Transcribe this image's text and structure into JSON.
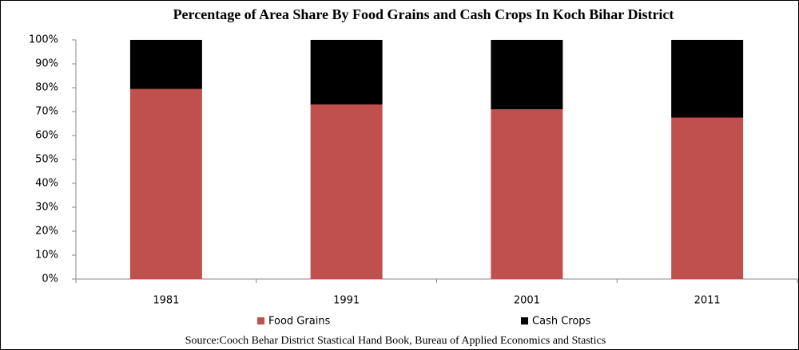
{
  "chart_data": {
    "type": "bar",
    "stacked": true,
    "title": "Percentage of Area Share By Food Grains and Cash Crops In Koch Bihar District",
    "categories": [
      "1981",
      "1991",
      "2001",
      "2011"
    ],
    "series": [
      {
        "name": "Food Grains",
        "color": "#c0504d",
        "values": [
          79.5,
          73,
          71,
          67.5
        ]
      },
      {
        "name": "Cash Crops",
        "color": "#000000",
        "values": [
          20.5,
          27,
          29,
          32.5
        ]
      }
    ],
    "ylim": [
      0,
      100
    ],
    "yticks": [
      {
        "value": 0,
        "label": "0%"
      },
      {
        "value": 10,
        "label": "10%"
      },
      {
        "value": 20,
        "label": "20%"
      },
      {
        "value": 30,
        "label": "30%"
      },
      {
        "value": 40,
        "label": "40%"
      },
      {
        "value": 50,
        "label": "50%"
      },
      {
        "value": 60,
        "label": "60%"
      },
      {
        "value": 70,
        "label": "70%"
      },
      {
        "value": 80,
        "label": "80%"
      },
      {
        "value": 90,
        "label": "90%"
      },
      {
        "value": 100,
        "label": "100%"
      }
    ],
    "legend": "bottom",
    "source": "Source:Cooch Behar District Stastical Hand Book, Bureau of Applied Economics and Stastics"
  }
}
